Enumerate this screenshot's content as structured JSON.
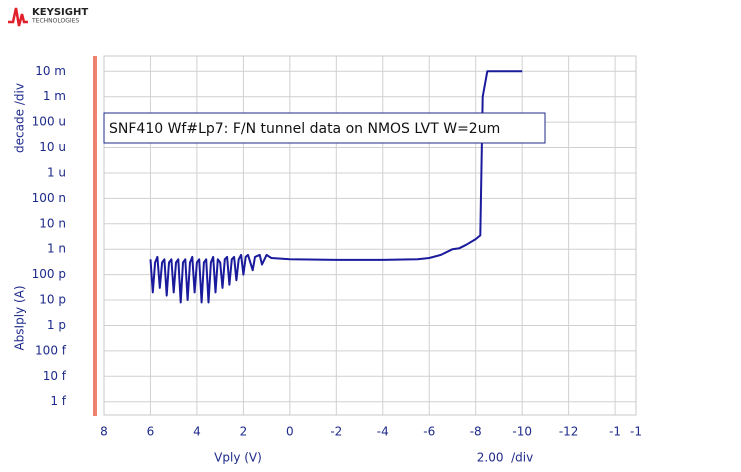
{
  "logo": {
    "name": "KEYSIGHT",
    "sub": "TECHNOLOGIES"
  },
  "chart_data": {
    "type": "line",
    "annotation": "SNF410 Wf#Lp7: F/N tunnel data on NMOS LVT W=2um",
    "xlabel": "Vply (V)",
    "x_scale_label": "2.00  /div",
    "y_scale_label": "decade /div",
    "ylabel": "AbsIply (A)",
    "log_y": true,
    "grid": true,
    "color": "#1a1a9c",
    "xlim": [
      8,
      -14.9
    ],
    "xticks": [
      8,
      6,
      4,
      2,
      0,
      -2,
      -4,
      -6,
      -8,
      -10,
      -12,
      {
        "value": -14,
        "label": "-1"
      },
      {
        "value": -14.9,
        "label": "-1"
      }
    ],
    "ylim": [
      3e-16,
      0.04
    ],
    "yticks": [
      {
        "value": 0.01,
        "label": "10 m"
      },
      {
        "value": 0.001,
        "label": "1 m"
      },
      {
        "value": 0.0001,
        "label": "100 u"
      },
      {
        "value": 1e-05,
        "label": "10 u"
      },
      {
        "value": 1e-06,
        "label": "1 u"
      },
      {
        "value": 1e-07,
        "label": "100 n"
      },
      {
        "value": 1e-08,
        "label": "10 n"
      },
      {
        "value": 1e-09,
        "label": "1 n"
      },
      {
        "value": 1e-10,
        "label": "100 p"
      },
      {
        "value": 1e-11,
        "label": "10 p"
      },
      {
        "value": 1e-12,
        "label": "1 p"
      },
      {
        "value": 1e-13,
        "label": "100 f"
      },
      {
        "value": 1e-14,
        "label": "10 f"
      },
      {
        "value": 1e-15,
        "label": "1 f"
      }
    ],
    "x": [
      6.0,
      5.9,
      5.8,
      5.7,
      5.6,
      5.5,
      5.4,
      5.3,
      5.2,
      5.1,
      5.0,
      4.9,
      4.8,
      4.7,
      4.6,
      4.5,
      4.4,
      4.3,
      4.2,
      4.1,
      4.0,
      3.9,
      3.8,
      3.7,
      3.6,
      3.5,
      3.4,
      3.3,
      3.2,
      3.1,
      3.0,
      2.9,
      2.8,
      2.7,
      2.6,
      2.5,
      2.4,
      2.3,
      2.2,
      2.1,
      2.0,
      1.9,
      1.8,
      1.6,
      1.5,
      1.3,
      1.2,
      1.0,
      0.8,
      0.0,
      -2,
      -4,
      -5.5,
      -6,
      -6.5,
      -7,
      -7.3,
      -7.6,
      -8,
      -8.2,
      -8.3,
      -8.5,
      -10
    ],
    "values": [
      4e-10,
      2e-11,
      3e-10,
      5e-10,
      3e-11,
      3e-10,
      4e-10,
      1.5e-11,
      3e-10,
      4e-10,
      2e-11,
      3e-10,
      4e-10,
      8e-12,
      3e-10,
      4e-10,
      1e-11,
      3e-10,
      5e-10,
      2e-11,
      3e-10,
      4e-10,
      8e-12,
      3e-10,
      4e-10,
      8e-12,
      3e-10,
      5e-10,
      2e-11,
      4e-10,
      3e-10,
      3e-11,
      4e-10,
      5e-10,
      4e-11,
      4e-10,
      5e-10,
      6e-11,
      4e-10,
      6e-10,
      1e-10,
      5e-10,
      6e-10,
      1.5e-10,
      5e-10,
      6e-10,
      2.5e-10,
      6e-10,
      4.5e-10,
      4e-10,
      3.8e-10,
      3.8e-10,
      4e-10,
      4.5e-10,
      6e-10,
      1e-09,
      1.1e-09,
      1.5e-09,
      2.5e-09,
      3.5e-09,
      0.001,
      0.01,
      0.01
    ]
  }
}
